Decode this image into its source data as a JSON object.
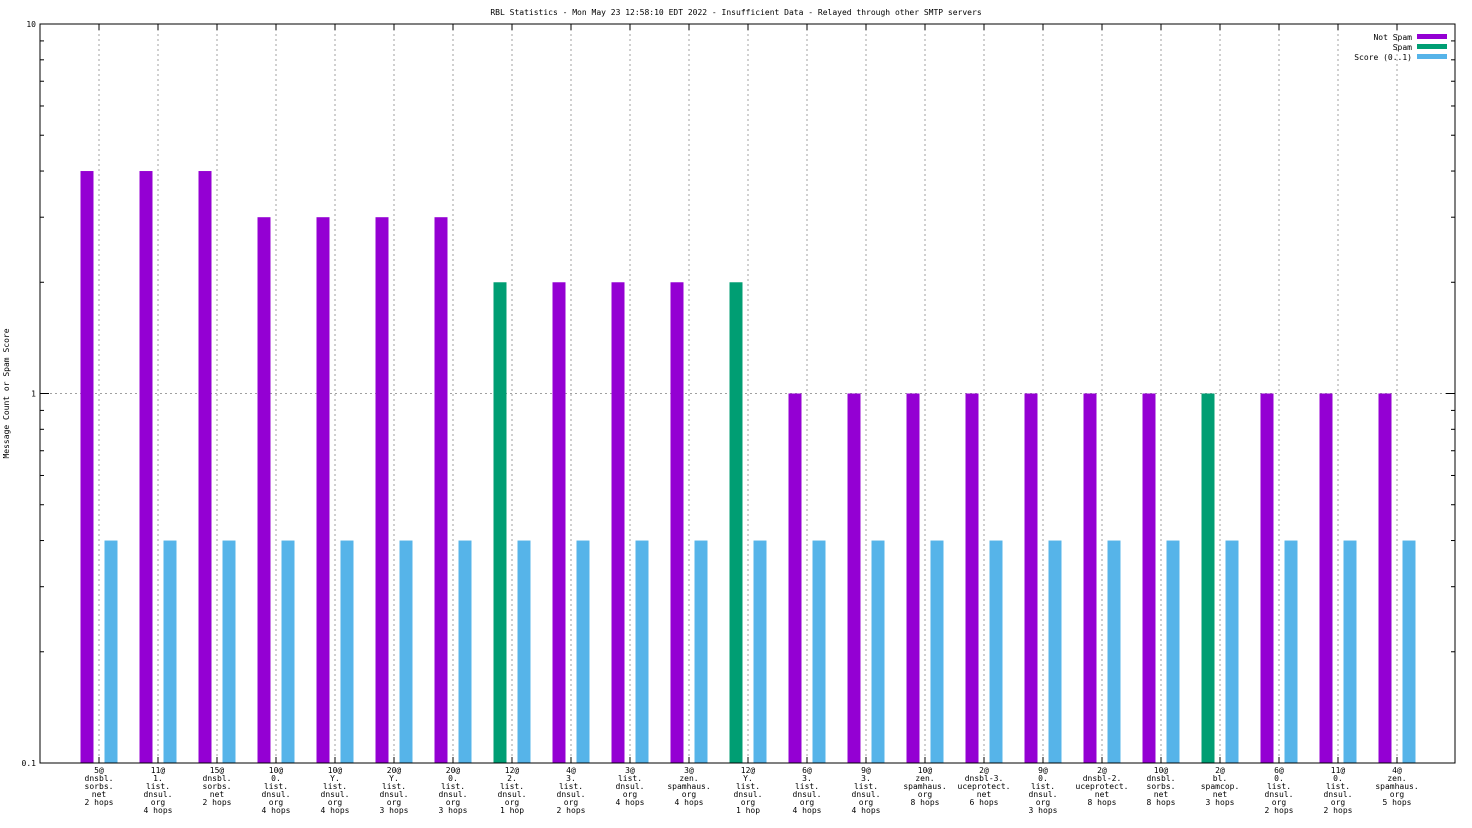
{
  "chart_data": {
    "type": "bar",
    "title": "RBL Statistics - Mon May 23 12:58:10 EDT 2022 - Insufficient Data - Relayed through other SMTP servers",
    "xlabel": "",
    "ylabel": "Message Count or Spam Score",
    "yscale": "log",
    "ylim": [
      0.1,
      10
    ],
    "y_tick_labels": [
      "0.1",
      "1",
      "10"
    ],
    "grid": true,
    "legend_position": "top-right",
    "categories": [
      [
        "5@",
        "dnsbl.",
        "sorbs.",
        "net",
        "2 hops"
      ],
      [
        "11@",
        "1.",
        "list.",
        "dnsul.",
        "org",
        "4 hops"
      ],
      [
        "15@",
        "dnsbl.",
        "sorbs.",
        "net",
        "2 hops"
      ],
      [
        "10@",
        "0.",
        "list.",
        "dnsul.",
        "org",
        "4 hops"
      ],
      [
        "10@",
        "Y.",
        "list.",
        "dnsul.",
        "org",
        "4 hops"
      ],
      [
        "20@",
        "Y.",
        "list.",
        "dnsul.",
        "org",
        "3 hops"
      ],
      [
        "20@",
        "0.",
        "list.",
        "dnsul.",
        "org",
        "3 hops"
      ],
      [
        "12@",
        "2.",
        "list.",
        "dnsul.",
        "org",
        "1 hop"
      ],
      [
        "4@",
        "3.",
        "list.",
        "dnsul.",
        "org",
        "2 hops"
      ],
      [
        "3@",
        "list.",
        "dnsul.",
        "org",
        "4 hops"
      ],
      [
        "3@",
        "zen.",
        "spamhaus.",
        "org",
        "4 hops"
      ],
      [
        "12@",
        "Y.",
        "list.",
        "dnsul.",
        "org",
        "1 hop"
      ],
      [
        "6@",
        "3.",
        "list.",
        "dnsul.",
        "org",
        "4 hops"
      ],
      [
        "9@",
        "3.",
        "list.",
        "dnsul.",
        "org",
        "4 hops"
      ],
      [
        "10@",
        "zen.",
        "spamhaus.",
        "org",
        "8 hops"
      ],
      [
        "2@",
        "dnsbl-3.",
        "uceprotect.",
        "net",
        "6 hops"
      ],
      [
        "9@",
        "0.",
        "list.",
        "dnsul.",
        "org",
        "3 hops"
      ],
      [
        "2@",
        "dnsbl-2.",
        "uceprotect.",
        "net",
        "8 hops"
      ],
      [
        "10@",
        "dnsbl.",
        "sorbs.",
        "net",
        "8 hops"
      ],
      [
        "2@",
        "bl.",
        "spamcop.",
        "net",
        "3 hops"
      ],
      [
        "6@",
        "0.",
        "list.",
        "dnsul.",
        "org",
        "2 hops"
      ],
      [
        "11@",
        "0.",
        "list.",
        "dnsul.",
        "org",
        "2 hops"
      ],
      [
        "4@",
        "zen.",
        "spamhaus.",
        "org",
        "5 hops"
      ]
    ],
    "series": [
      {
        "name": "Not Spam",
        "color": "#9400d3",
        "values": [
          4,
          4,
          4,
          3,
          3,
          3,
          3,
          0,
          2,
          2,
          2,
          0,
          1,
          1,
          1,
          1,
          1,
          1,
          1,
          0,
          1,
          1,
          1
        ]
      },
      {
        "name": "Spam",
        "color": "#009e73",
        "values": [
          0,
          0,
          0,
          0,
          0,
          0,
          0,
          2,
          0,
          0,
          0,
          2,
          0,
          0,
          0,
          0,
          0,
          0,
          0,
          1,
          0,
          0,
          0
        ]
      },
      {
        "name": "Score (0..1)",
        "color": "#56b4e9",
        "values": [
          0.4,
          0.4,
          0.4,
          0.4,
          0.4,
          0.4,
          0.4,
          0.4,
          0.4,
          0.4,
          0.4,
          0.4,
          0.4,
          0.4,
          0.4,
          0.4,
          0.4,
          0.4,
          0.4,
          0.4,
          0.4,
          0.4,
          0.4
        ]
      }
    ]
  }
}
